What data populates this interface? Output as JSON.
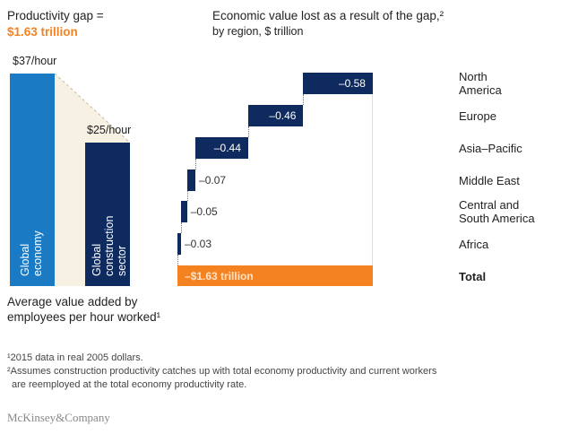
{
  "left": {
    "title": "Productivity gap =",
    "gap": "$1.63 trillion",
    "bars": [
      {
        "name": "Global economy",
        "lines": [
          "Global",
          "economy"
        ],
        "value": 37,
        "label": "$37/hour"
      },
      {
        "name": "Global construction sector",
        "lines": [
          "Global",
          "construction",
          "sector"
        ],
        "value": 25,
        "label": "$25/hour"
      }
    ],
    "caption_l1": "Average value added by",
    "caption_l2": "employees per hour worked¹"
  },
  "chart_data": {
    "type": "waterfall",
    "title": "Economic value lost as a result of the gap,²",
    "subtitle": "by region, $ trillion",
    "categories": [
      "North America",
      "Europe",
      "Asia–Pacific",
      "Middle East",
      "Central and South America",
      "Africa",
      "Total"
    ],
    "values": [
      -0.58,
      -0.46,
      -0.44,
      -0.07,
      -0.05,
      -0.03,
      -1.63
    ],
    "labels": [
      "–0.58",
      "–0.46",
      "–0.44",
      "–0.07",
      "–0.05",
      "–0.03",
      "–$1.63 trillion"
    ],
    "category_lines": [
      [
        "North",
        "America"
      ],
      [
        "Europe"
      ],
      [
        "Asia–Pacific"
      ],
      [
        "Middle East"
      ],
      [
        "Central and",
        "South America"
      ],
      [
        "Africa"
      ],
      [
        "Total"
      ]
    ],
    "colors": {
      "region": "#0e2a5e",
      "total": "#f58220"
    }
  },
  "footnotes": {
    "n1": "¹2015 data in real 2005 dollars.",
    "n2a": "²Assumes construction productivity catches up with total economy productivity and current workers",
    "n2b": "are reemployed at the total economy productivity rate."
  },
  "brand": "McKinsey&Company"
}
